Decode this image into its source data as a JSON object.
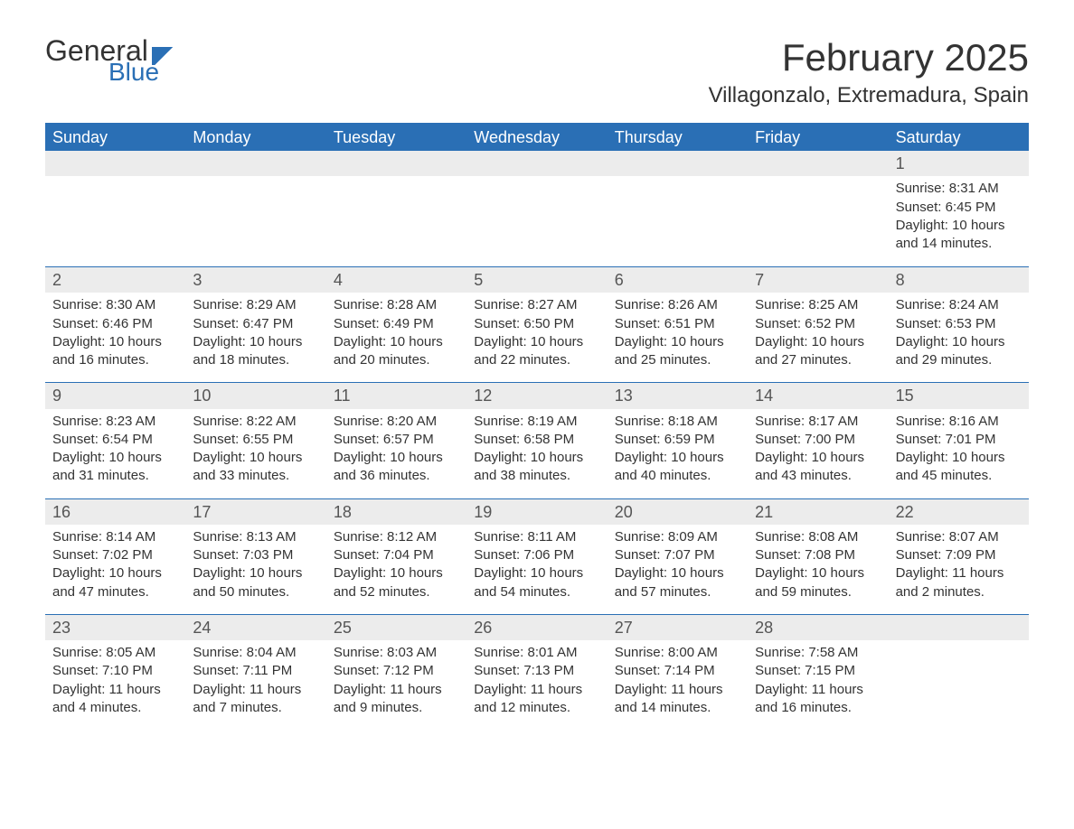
{
  "logo": {
    "word1": "General",
    "word2": "Blue"
  },
  "title": "February 2025",
  "location": "Villagonzalo, Extremadura, Spain",
  "days_of_week": [
    "Sunday",
    "Monday",
    "Tuesday",
    "Wednesday",
    "Thursday",
    "Friday",
    "Saturday"
  ],
  "colors": {
    "accent": "#2a6fb5",
    "header_text": "#ffffff",
    "daynum_bg": "#ececec",
    "text": "#333333",
    "background": "#ffffff"
  },
  "typography": {
    "title_fontsize": 42,
    "location_fontsize": 24,
    "header_fontsize": 18,
    "daynum_fontsize": 18,
    "body_fontsize": 15,
    "font_family": "Segoe UI"
  },
  "layout": {
    "columns": 7,
    "rows": 5,
    "cell_min_height": 128
  },
  "weeks": [
    [
      {
        "empty": true
      },
      {
        "empty": true
      },
      {
        "empty": true
      },
      {
        "empty": true
      },
      {
        "empty": true
      },
      {
        "empty": true
      },
      {
        "num": "1",
        "sunrise": "Sunrise: 8:31 AM",
        "sunset": "Sunset: 6:45 PM",
        "daylight": "Daylight: 10 hours and 14 minutes."
      }
    ],
    [
      {
        "num": "2",
        "sunrise": "Sunrise: 8:30 AM",
        "sunset": "Sunset: 6:46 PM",
        "daylight": "Daylight: 10 hours and 16 minutes."
      },
      {
        "num": "3",
        "sunrise": "Sunrise: 8:29 AM",
        "sunset": "Sunset: 6:47 PM",
        "daylight": "Daylight: 10 hours and 18 minutes."
      },
      {
        "num": "4",
        "sunrise": "Sunrise: 8:28 AM",
        "sunset": "Sunset: 6:49 PM",
        "daylight": "Daylight: 10 hours and 20 minutes."
      },
      {
        "num": "5",
        "sunrise": "Sunrise: 8:27 AM",
        "sunset": "Sunset: 6:50 PM",
        "daylight": "Daylight: 10 hours and 22 minutes."
      },
      {
        "num": "6",
        "sunrise": "Sunrise: 8:26 AM",
        "sunset": "Sunset: 6:51 PM",
        "daylight": "Daylight: 10 hours and 25 minutes."
      },
      {
        "num": "7",
        "sunrise": "Sunrise: 8:25 AM",
        "sunset": "Sunset: 6:52 PM",
        "daylight": "Daylight: 10 hours and 27 minutes."
      },
      {
        "num": "8",
        "sunrise": "Sunrise: 8:24 AM",
        "sunset": "Sunset: 6:53 PM",
        "daylight": "Daylight: 10 hours and 29 minutes."
      }
    ],
    [
      {
        "num": "9",
        "sunrise": "Sunrise: 8:23 AM",
        "sunset": "Sunset: 6:54 PM",
        "daylight": "Daylight: 10 hours and 31 minutes."
      },
      {
        "num": "10",
        "sunrise": "Sunrise: 8:22 AM",
        "sunset": "Sunset: 6:55 PM",
        "daylight": "Daylight: 10 hours and 33 minutes."
      },
      {
        "num": "11",
        "sunrise": "Sunrise: 8:20 AM",
        "sunset": "Sunset: 6:57 PM",
        "daylight": "Daylight: 10 hours and 36 minutes."
      },
      {
        "num": "12",
        "sunrise": "Sunrise: 8:19 AM",
        "sunset": "Sunset: 6:58 PM",
        "daylight": "Daylight: 10 hours and 38 minutes."
      },
      {
        "num": "13",
        "sunrise": "Sunrise: 8:18 AM",
        "sunset": "Sunset: 6:59 PM",
        "daylight": "Daylight: 10 hours and 40 minutes."
      },
      {
        "num": "14",
        "sunrise": "Sunrise: 8:17 AM",
        "sunset": "Sunset: 7:00 PM",
        "daylight": "Daylight: 10 hours and 43 minutes."
      },
      {
        "num": "15",
        "sunrise": "Sunrise: 8:16 AM",
        "sunset": "Sunset: 7:01 PM",
        "daylight": "Daylight: 10 hours and 45 minutes."
      }
    ],
    [
      {
        "num": "16",
        "sunrise": "Sunrise: 8:14 AM",
        "sunset": "Sunset: 7:02 PM",
        "daylight": "Daylight: 10 hours and 47 minutes."
      },
      {
        "num": "17",
        "sunrise": "Sunrise: 8:13 AM",
        "sunset": "Sunset: 7:03 PM",
        "daylight": "Daylight: 10 hours and 50 minutes."
      },
      {
        "num": "18",
        "sunrise": "Sunrise: 8:12 AM",
        "sunset": "Sunset: 7:04 PM",
        "daylight": "Daylight: 10 hours and 52 minutes."
      },
      {
        "num": "19",
        "sunrise": "Sunrise: 8:11 AM",
        "sunset": "Sunset: 7:06 PM",
        "daylight": "Daylight: 10 hours and 54 minutes."
      },
      {
        "num": "20",
        "sunrise": "Sunrise: 8:09 AM",
        "sunset": "Sunset: 7:07 PM",
        "daylight": "Daylight: 10 hours and 57 minutes."
      },
      {
        "num": "21",
        "sunrise": "Sunrise: 8:08 AM",
        "sunset": "Sunset: 7:08 PM",
        "daylight": "Daylight: 10 hours and 59 minutes."
      },
      {
        "num": "22",
        "sunrise": "Sunrise: 8:07 AM",
        "sunset": "Sunset: 7:09 PM",
        "daylight": "Daylight: 11 hours and 2 minutes."
      }
    ],
    [
      {
        "num": "23",
        "sunrise": "Sunrise: 8:05 AM",
        "sunset": "Sunset: 7:10 PM",
        "daylight": "Daylight: 11 hours and 4 minutes."
      },
      {
        "num": "24",
        "sunrise": "Sunrise: 8:04 AM",
        "sunset": "Sunset: 7:11 PM",
        "daylight": "Daylight: 11 hours and 7 minutes."
      },
      {
        "num": "25",
        "sunrise": "Sunrise: 8:03 AM",
        "sunset": "Sunset: 7:12 PM",
        "daylight": "Daylight: 11 hours and 9 minutes."
      },
      {
        "num": "26",
        "sunrise": "Sunrise: 8:01 AM",
        "sunset": "Sunset: 7:13 PM",
        "daylight": "Daylight: 11 hours and 12 minutes."
      },
      {
        "num": "27",
        "sunrise": "Sunrise: 8:00 AM",
        "sunset": "Sunset: 7:14 PM",
        "daylight": "Daylight: 11 hours and 14 minutes."
      },
      {
        "num": "28",
        "sunrise": "Sunrise: 7:58 AM",
        "sunset": "Sunset: 7:15 PM",
        "daylight": "Daylight: 11 hours and 16 minutes."
      },
      {
        "empty": true
      }
    ]
  ]
}
